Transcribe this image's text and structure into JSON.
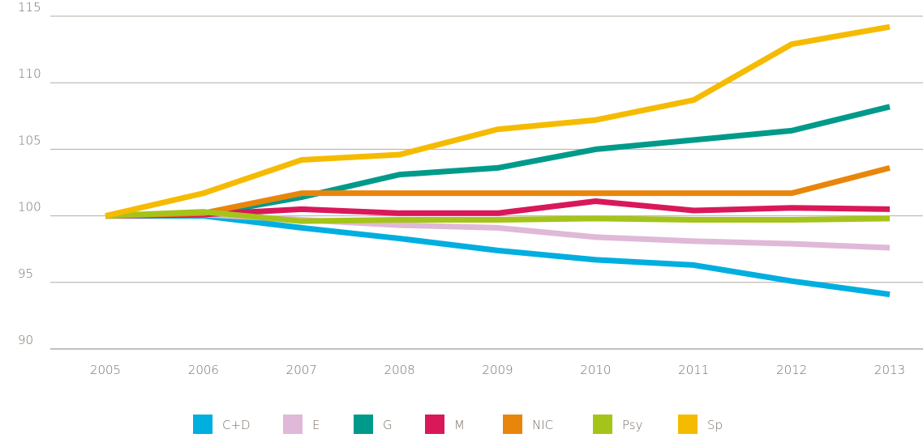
{
  "chart_data": {
    "type": "line",
    "categories": [
      "2005",
      "2006",
      "2007",
      "2008",
      "2009",
      "2010",
      "2011",
      "2012",
      "2013"
    ],
    "series": [
      {
        "name": "C+D",
        "color": "#00aee0",
        "values": [
          100,
          100,
          99.1,
          98.3,
          97.4,
          96.7,
          96.3,
          95.1,
          94.1
        ]
      },
      {
        "name": "E",
        "color": "#e0b8d8",
        "values": [
          100,
          100.1,
          99.7,
          99.3,
          99.1,
          98.4,
          98.1,
          97.9,
          97.6
        ]
      },
      {
        "name": "G",
        "color": "#009a8a",
        "values": [
          100,
          100.1,
          101.4,
          103.1,
          103.6,
          105,
          105.7,
          106.4,
          108.2
        ]
      },
      {
        "name": "M",
        "color": "#d9185a",
        "values": [
          100,
          100.1,
          100.5,
          100.2,
          100.2,
          101.1,
          100.4,
          100.6,
          100.5
        ]
      },
      {
        "name": "NIC",
        "color": "#e8860c",
        "values": [
          100,
          100.2,
          101.7,
          101.7,
          101.7,
          101.7,
          101.7,
          101.7,
          103.6
        ]
      },
      {
        "name": "Psy",
        "color": "#a5c41a",
        "values": [
          100,
          100.3,
          99.6,
          99.7,
          99.7,
          99.8,
          99.7,
          99.7,
          99.8
        ]
      },
      {
        "name": "Sp",
        "color": "#f5bb00",
        "values": [
          100,
          101.7,
          104.2,
          104.6,
          106.5,
          107.2,
          108.7,
          112.9,
          114.2
        ]
      }
    ],
    "ylim": [
      90,
      115
    ],
    "yticks": [
      90,
      95,
      100,
      105,
      110,
      115
    ],
    "grid": true,
    "legend": "bottom"
  }
}
